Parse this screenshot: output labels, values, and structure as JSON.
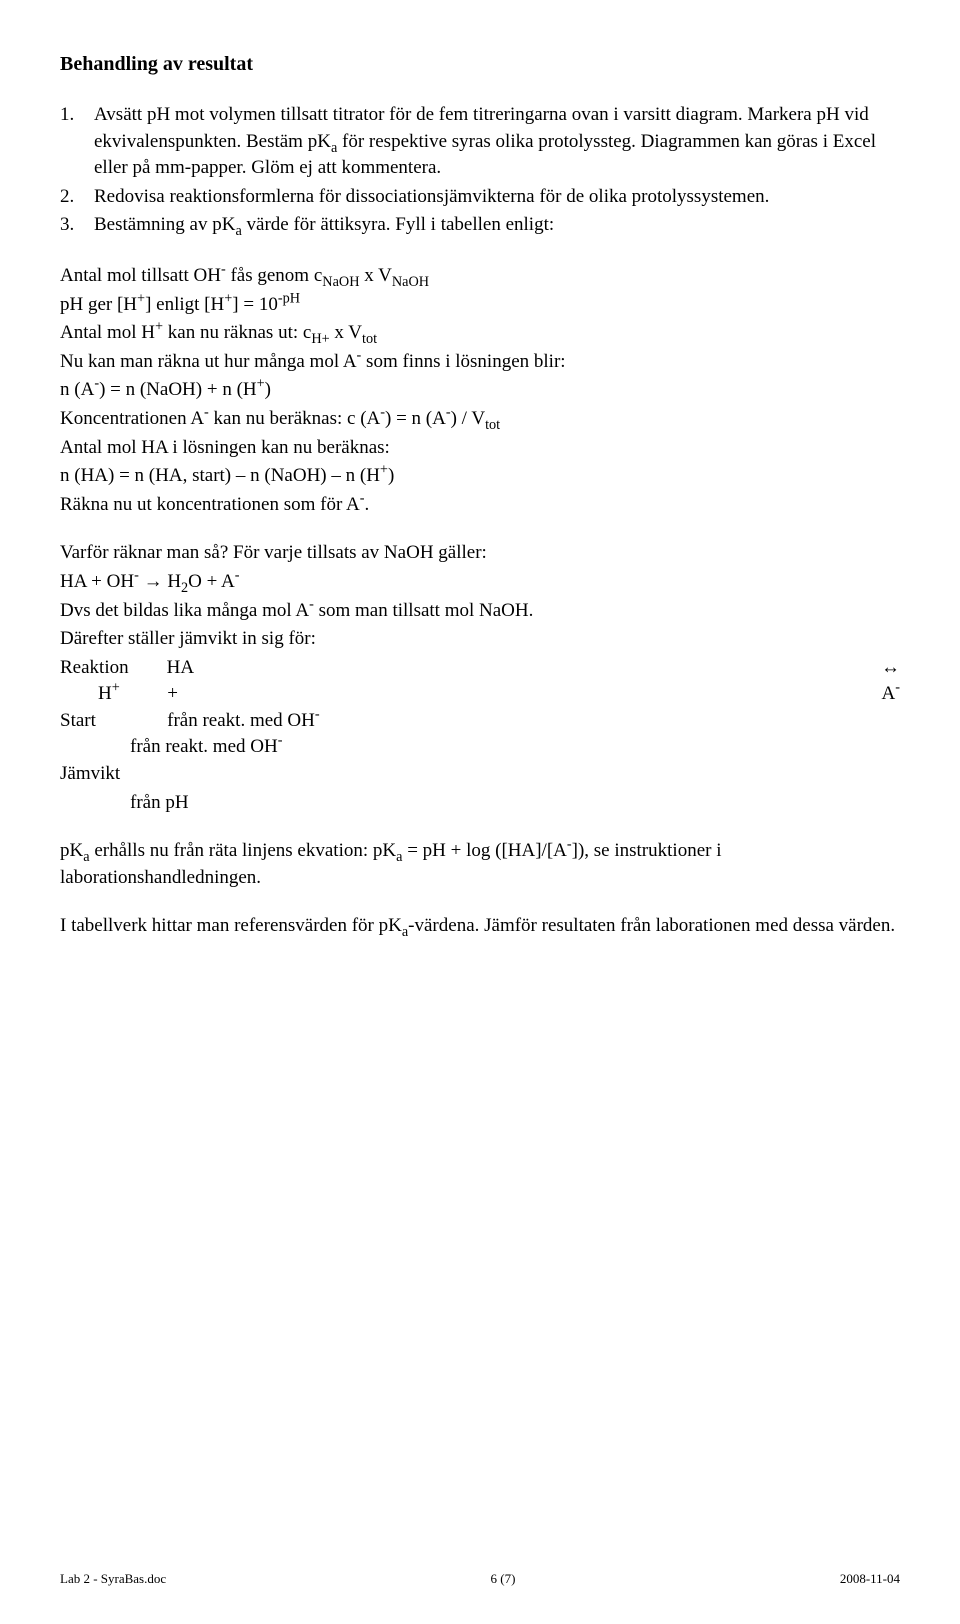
{
  "title": "Behandling av resultat",
  "items": {
    "num1": "1.",
    "num2": "2.",
    "num3": "3.",
    "text1_a": "Avsätt pH mot volymen tillsatt titrator för de fem titreringarna ovan i varsitt diagram. Markera pH vid ekvivalenspunkten. Bestäm pK",
    "text1_b": " för respektive syras olika protolyssteg. Diagrammen kan göras i Excel eller på mm-papper. Glöm ej att kommentera.",
    "text2": "Redovisa reaktionsformlerna för dissociationsjämvikterna för de olika protolyssystemen.",
    "text3_a": "Bestämning av pK",
    "text3_b": " värde för ättiksyra. Fyll i tabellen enligt:"
  },
  "block1": {
    "l1_a": "Antal mol tillsatt OH",
    "l1_b": " fås genom c",
    "l1_c": " x V",
    "l2_a": "pH ger [H",
    "l2_b": "] enligt [H",
    "l2_c": "] = 10",
    "l3_a": "Antal mol H",
    "l3_b": " kan nu räknas ut: c",
    "l3_c": " x V",
    "l4_a": "Nu kan man räkna ut hur många mol A",
    "l4_b": " som finns i lösningen blir:",
    "l5_a": "n (A",
    "l5_b": ") = n (NaOH) + n (H",
    "l5_c": ")",
    "l6_a": "Koncentrationen A",
    "l6_b": " kan nu beräknas: c (A",
    "l6_c": ") = n (A",
    "l6_d": ") / V",
    "l7": "Antal mol HA i lösningen kan nu beräknas:",
    "l8_a": "n (HA) = n (HA, start) – n (NaOH) – n (H",
    "l8_b": ")",
    "l9_a": "Räkna nu ut koncentrationen som för A",
    "l9_b": "."
  },
  "block2": {
    "l1": "Varför räknar man så? För varje tillsats av NaOH gäller:",
    "l2_a": "HA + OH",
    "l2_b": " → H",
    "l2_c": "O + A",
    "l3_a": "Dvs det bildas lika många mol A",
    "l3_b": " som man tillsatt mol NaOH.",
    "l4": "Därefter ställer jämvikt in sig för:",
    "l5_left": "Reaktion        HA",
    "l5_right": "↔",
    "l6_left": "        H",
    "l6_plus": "+",
    "l6_gap": "          +",
    "l6_right": "A",
    "l7_left": "Start               från reakt. med OH",
    "l8": "från reakt. med OH",
    "l9": "Jämvikt",
    "l10": "från pH"
  },
  "block3": {
    "a": "pK",
    "b": " erhålls nu från räta linjens ekvation: pK",
    "c": " = pH + log ([HA]/[A",
    "d": "]), se instruktioner i laborationshandledningen."
  },
  "block4": {
    "a": "I tabellverk hittar man referensvärden för pK",
    "b": "-värdena. Jämför resultaten från laborationen med dessa värden."
  },
  "sub_a": "a",
  "sub_NaOH": "NaOH",
  "sub_Hplus": "H+",
  "sub_tot": "tot",
  "sub_2": "2",
  "sup_minus": "-",
  "sup_plus": "+",
  "sup_mph": "-pH",
  "footer": {
    "left": "Lab 2 - SyraBas.doc",
    "center": "6 (7)",
    "right": "2008-11-04"
  }
}
